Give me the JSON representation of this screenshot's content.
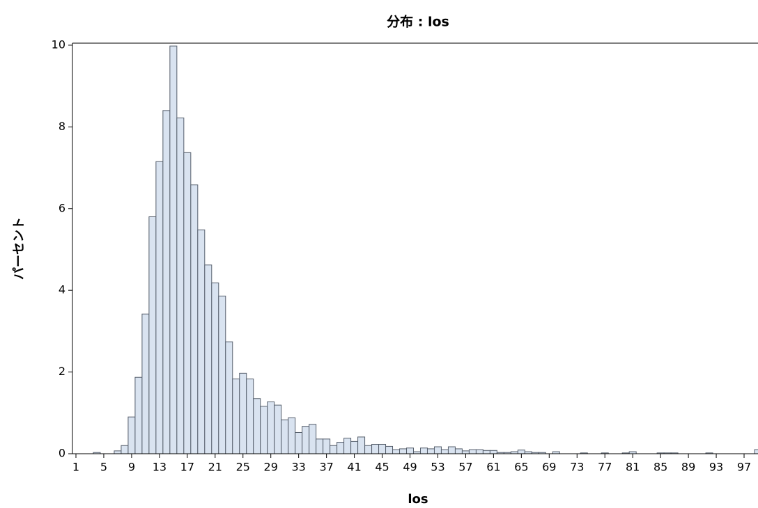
{
  "chart_data": {
    "type": "histogram",
    "title": "分布 : los",
    "x_label": "los",
    "y_label": "パーセント",
    "bins": [
      0.5,
      1.5,
      2.5,
      3.5,
      4.5,
      5.5,
      6.5,
      7.5,
      8.5,
      9.5,
      10.5,
      11.5,
      12.5,
      13.5,
      14.5,
      15.5,
      16.5,
      17.5,
      18.5,
      19.5,
      20.5,
      21.5,
      22.5,
      23.5,
      24.5,
      25.5,
      26.5,
      27.5,
      28.5,
      29.5,
      30.5,
      31.5,
      32.5,
      33.5,
      34.5,
      35.5,
      36.5,
      37.5,
      38.5,
      39.5,
      40.5,
      41.5,
      42.5,
      43.5,
      44.5,
      45.5,
      46.5,
      47.5,
      48.5,
      49.5,
      50.5,
      51.5,
      52.5,
      53.5,
      54.5,
      55.5,
      56.5,
      57.5,
      58.5,
      59.5,
      60.5,
      61.5,
      62.5,
      63.5,
      64.5,
      65.5,
      66.5,
      67.5,
      68.5,
      69.5,
      70.5,
      71.5,
      72.5,
      73.5,
      74.5,
      75.5,
      76.5,
      77.5,
      78.5,
      79.5,
      80.5,
      81.5,
      82.5,
      83.5,
      84.5,
      85.5,
      86.5,
      87.5,
      88.5,
      89.5,
      90.5,
      91.5,
      92.5,
      93.5,
      94.5,
      95.5,
      96.5,
      97.5,
      98.5,
      99.5
    ],
    "values": [
      0,
      0,
      0,
      0.03,
      0,
      0,
      0.07,
      0.2,
      0.9,
      1.87,
      3.42,
      5.8,
      7.15,
      8.4,
      9.98,
      8.22,
      7.37,
      6.58,
      5.48,
      4.62,
      4.18,
      3.86,
      2.74,
      1.83,
      1.97,
      1.83,
      1.35,
      1.16,
      1.27,
      1.19,
      0.83,
      0.88,
      0.52,
      0.67,
      0.72,
      0.36,
      0.36,
      0.2,
      0.28,
      0.38,
      0.3,
      0.41,
      0.2,
      0.23,
      0.23,
      0.18,
      0.1,
      0.12,
      0.14,
      0.05,
      0.14,
      0.12,
      0.17,
      0.1,
      0.17,
      0.12,
      0.07,
      0.1,
      0.1,
      0.08,
      0.08,
      0.03,
      0.03,
      0.05,
      0.09,
      0.05,
      0.03,
      0.03,
      0,
      0.05,
      0,
      0,
      0,
      0.02,
      0,
      0,
      0.02,
      0,
      0,
      0.02,
      0.05,
      0,
      0,
      0,
      0.02,
      0.02,
      0.02,
      0,
      0,
      0,
      0,
      0.02,
      0,
      0,
      0,
      0,
      0,
      0,
      0.1
    ],
    "color": "#d9e3f0",
    "edge_color": "#555e6b",
    "xlim": [
      0.5,
      98.9
    ],
    "ylim": [
      0,
      10.05
    ],
    "xticks": [
      1,
      5,
      9,
      13,
      17,
      21,
      25,
      29,
      33,
      37,
      41,
      45,
      49,
      53,
      57,
      61,
      65,
      69,
      73,
      77,
      81,
      85,
      89,
      93,
      97
    ],
    "yticks": [
      0,
      2,
      4,
      6,
      8,
      10
    ]
  }
}
